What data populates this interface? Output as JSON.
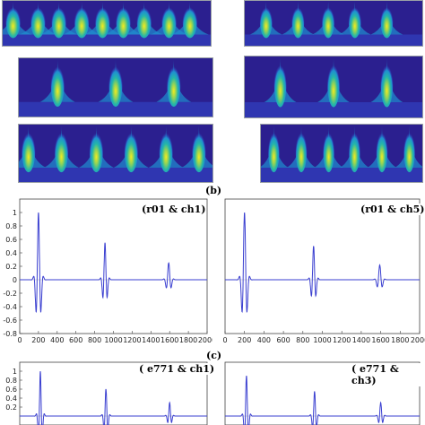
{
  "figure": {
    "labels": {
      "b": "(b)",
      "c": "(c)"
    }
  },
  "scalograms": {
    "colors": [
      "#2b1f8f",
      "#3246c8",
      "#1f8fd0",
      "#25b6a8",
      "#8fd25a",
      "#f3ec1e"
    ],
    "panels": [
      {
        "id": "top-left",
        "peaks": [
          0.05,
          0.17,
          0.27,
          0.38,
          0.48,
          0.58,
          0.68,
          0.8,
          0.9
        ]
      },
      {
        "id": "top-right",
        "peaks": [
          0.12,
          0.3,
          0.47,
          0.62,
          0.8
        ]
      },
      {
        "id": "mid-left",
        "peaks": [
          0.2,
          0.5,
          0.8
        ]
      },
      {
        "id": "mid-right",
        "peaks": [
          0.2,
          0.5,
          0.8
        ]
      },
      {
        "id": "low-left",
        "peaks": [
          0.05,
          0.22,
          0.4,
          0.58,
          0.76,
          0.93
        ]
      },
      {
        "id": "low-right",
        "peaks": [
          0.08,
          0.25,
          0.42,
          0.58,
          0.75,
          0.92
        ]
      }
    ]
  },
  "chart_data": [
    {
      "type": "line",
      "annotation": "(r01 & ch1)",
      "color": "#3a3fd0",
      "xlim": [
        0,
        2000
      ],
      "ylim": [
        -0.8,
        1.2
      ],
      "x_ticks": [
        0,
        200,
        400,
        600,
        800,
        1000,
        1200,
        1400,
        1600,
        1800,
        2000
      ],
      "y_ticks": [
        -0.8,
        -0.6,
        -0.4,
        -0.2,
        0,
        0.2,
        0.4,
        0.6,
        0.8,
        1
      ],
      "pulses": [
        {
          "center": 200,
          "amplitude": 1.0,
          "width": 22
        },
        {
          "center": 910,
          "amplitude": 0.55,
          "width": 20
        },
        {
          "center": 1590,
          "amplitude": 0.25,
          "width": 22
        }
      ],
      "grid": false
    },
    {
      "type": "line",
      "annotation": "(r01 & ch5)",
      "color": "#3a3fd0",
      "xlim": [
        0,
        2000
      ],
      "ylim": [
        -0.8,
        1.2
      ],
      "x_ticks": [
        0,
        200,
        400,
        600,
        800,
        1000,
        1200,
        1400,
        1600,
        1800,
        2000
      ],
      "y_ticks": [],
      "pulses": [
        {
          "center": 200,
          "amplitude": 1.0,
          "width": 22
        },
        {
          "center": 910,
          "amplitude": 0.5,
          "width": 20
        },
        {
          "center": 1590,
          "amplitude": 0.22,
          "width": 22
        }
      ],
      "grid": false
    },
    {
      "type": "line",
      "annotation": "( e771 & ch1)",
      "color": "#3a3fd0",
      "xlim": [
        0,
        2000
      ],
      "ylim": [
        -0.2,
        1.2
      ],
      "x_ticks": [],
      "y_ticks": [
        0.2,
        0.4,
        0.6,
        0.8,
        1
      ],
      "pulses": [
        {
          "center": 220,
          "amplitude": 1.0,
          "width": 18
        },
        {
          "center": 920,
          "amplitude": 0.6,
          "width": 18
        },
        {
          "center": 1600,
          "amplitude": 0.3,
          "width": 18
        }
      ],
      "grid": false
    },
    {
      "type": "line",
      "annotation": "( e771 & ch3)",
      "color": "#3a3fd0",
      "xlim": [
        0,
        2000
      ],
      "ylim": [
        -0.2,
        1.2
      ],
      "x_ticks": [],
      "y_ticks": [],
      "pulses": [
        {
          "center": 220,
          "amplitude": 0.9,
          "width": 18
        },
        {
          "center": 920,
          "amplitude": 0.55,
          "width": 18
        },
        {
          "center": 1600,
          "amplitude": 0.3,
          "width": 18
        }
      ],
      "grid": false
    }
  ]
}
